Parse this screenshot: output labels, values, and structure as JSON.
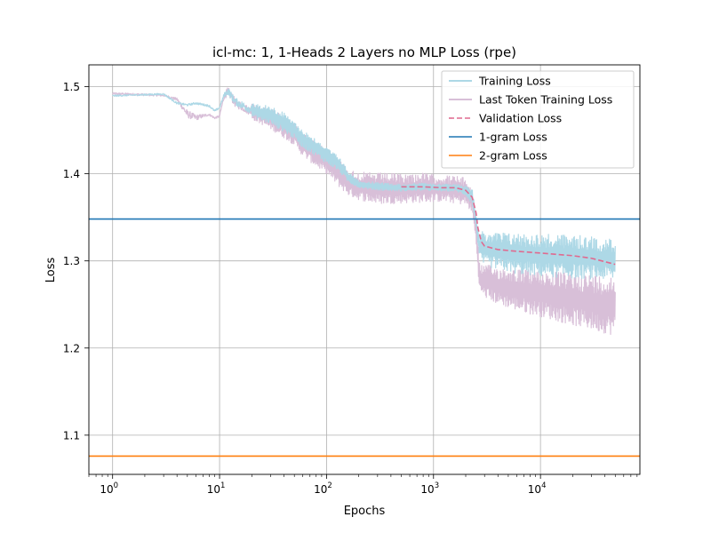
{
  "chart_data": {
    "type": "line",
    "title": "icl-mc: 1, 1-Heads 2 Layers no MLP  Loss (rpe)",
    "xlabel": "Epochs",
    "ylabel": "Loss",
    "xscale": "log",
    "xlim": [
      0.6,
      85000
    ],
    "ylim": [
      1.055,
      1.525
    ],
    "grid": true,
    "legend_position": "top-right",
    "x_ticks": [
      {
        "value": 1,
        "base": "10",
        "exp": "0"
      },
      {
        "value": 10,
        "base": "10",
        "exp": "1"
      },
      {
        "value": 100,
        "base": "10",
        "exp": "2"
      },
      {
        "value": 1000,
        "base": "10",
        "exp": "3"
      },
      {
        "value": 10000,
        "base": "10",
        "exp": "4"
      }
    ],
    "y_ticks": [
      {
        "value": 1.1,
        "label": "1.1"
      },
      {
        "value": 1.2,
        "label": "1.2"
      },
      {
        "value": 1.3,
        "label": "1.3"
      },
      {
        "value": 1.4,
        "label": "1.4"
      },
      {
        "value": 1.5,
        "label": "1.5"
      }
    ],
    "series": [
      {
        "name": "Training Loss",
        "color": "#add8e6",
        "style": "solid",
        "band": true,
        "x": [
          1,
          3,
          4,
          5,
          6,
          8,
          9,
          10,
          11,
          12,
          14,
          18,
          22,
          30,
          40,
          50,
          60,
          80,
          100,
          130,
          160,
          200,
          300,
          500,
          800,
          1200,
          1600,
          2000,
          2300,
          2500,
          2700,
          3000,
          4000,
          6000,
          10000,
          20000,
          50000
        ],
        "upper": [
          1.491,
          1.493,
          1.483,
          1.481,
          1.483,
          1.48,
          1.474,
          1.478,
          1.494,
          1.502,
          1.49,
          1.484,
          1.48,
          1.478,
          1.47,
          1.46,
          1.45,
          1.44,
          1.43,
          1.42,
          1.403,
          1.392,
          1.39,
          1.388,
          1.389,
          1.388,
          1.388,
          1.387,
          1.384,
          1.352,
          1.333,
          1.334,
          1.333,
          1.332,
          1.331,
          1.33,
          1.325
        ],
        "lower": [
          1.488,
          1.49,
          1.479,
          1.477,
          1.479,
          1.476,
          1.47,
          1.474,
          1.486,
          1.488,
          1.476,
          1.468,
          1.463,
          1.457,
          1.448,
          1.44,
          1.43,
          1.42,
          1.412,
          1.403,
          1.39,
          1.384,
          1.381,
          1.38,
          1.381,
          1.38,
          1.38,
          1.375,
          1.365,
          1.34,
          1.298,
          1.294,
          1.29,
          1.285,
          1.282,
          1.28,
          1.278
        ]
      },
      {
        "name": "Last Token Training Loss",
        "color": "#d8bfd8",
        "style": "solid",
        "band": true,
        "x": [
          1,
          3,
          4,
          5,
          6,
          8,
          9,
          10,
          11,
          12,
          14,
          18,
          22,
          30,
          40,
          50,
          60,
          80,
          100,
          130,
          160,
          200,
          300,
          500,
          800,
          1200,
          1600,
          2000,
          2300,
          2500,
          2700,
          3000,
          4000,
          6000,
          10000,
          20000,
          50000
        ],
        "upper": [
          1.494,
          1.492,
          1.488,
          1.476,
          1.47,
          1.47,
          1.466,
          1.468,
          1.495,
          1.503,
          1.49,
          1.482,
          1.478,
          1.476,
          1.468,
          1.457,
          1.447,
          1.437,
          1.427,
          1.417,
          1.405,
          1.402,
          1.401,
          1.4,
          1.401,
          1.398,
          1.398,
          1.395,
          1.382,
          1.348,
          1.296,
          1.296,
          1.293,
          1.291,
          1.289,
          1.286,
          1.283
        ],
        "lower": [
          1.49,
          1.488,
          1.483,
          1.461,
          1.459,
          1.466,
          1.462,
          1.464,
          1.483,
          1.486,
          1.473,
          1.466,
          1.46,
          1.451,
          1.441,
          1.433,
          1.42,
          1.408,
          1.4,
          1.385,
          1.375,
          1.37,
          1.365,
          1.366,
          1.367,
          1.368,
          1.366,
          1.364,
          1.355,
          1.32,
          1.263,
          1.258,
          1.25,
          1.243,
          1.236,
          1.226,
          1.214
        ]
      },
      {
        "name": "Validation Loss",
        "color": "#e06a8f",
        "style": "dashed",
        "x": [
          500,
          800,
          1200,
          1600,
          2000,
          2300,
          2500,
          2600,
          2800,
          3000,
          4000,
          6000,
          10000,
          20000,
          30000,
          50000
        ],
        "y": [
          1.385,
          1.385,
          1.384,
          1.384,
          1.381,
          1.373,
          1.355,
          1.338,
          1.322,
          1.317,
          1.313,
          1.311,
          1.309,
          1.306,
          1.303,
          1.296
        ]
      },
      {
        "name": "1-gram Loss",
        "color": "#1f77b4",
        "style": "hline",
        "y": 1.348
      },
      {
        "name": "2-gram Loss",
        "color": "#ff7f0e",
        "style": "hline",
        "y": 1.076
      }
    ]
  }
}
